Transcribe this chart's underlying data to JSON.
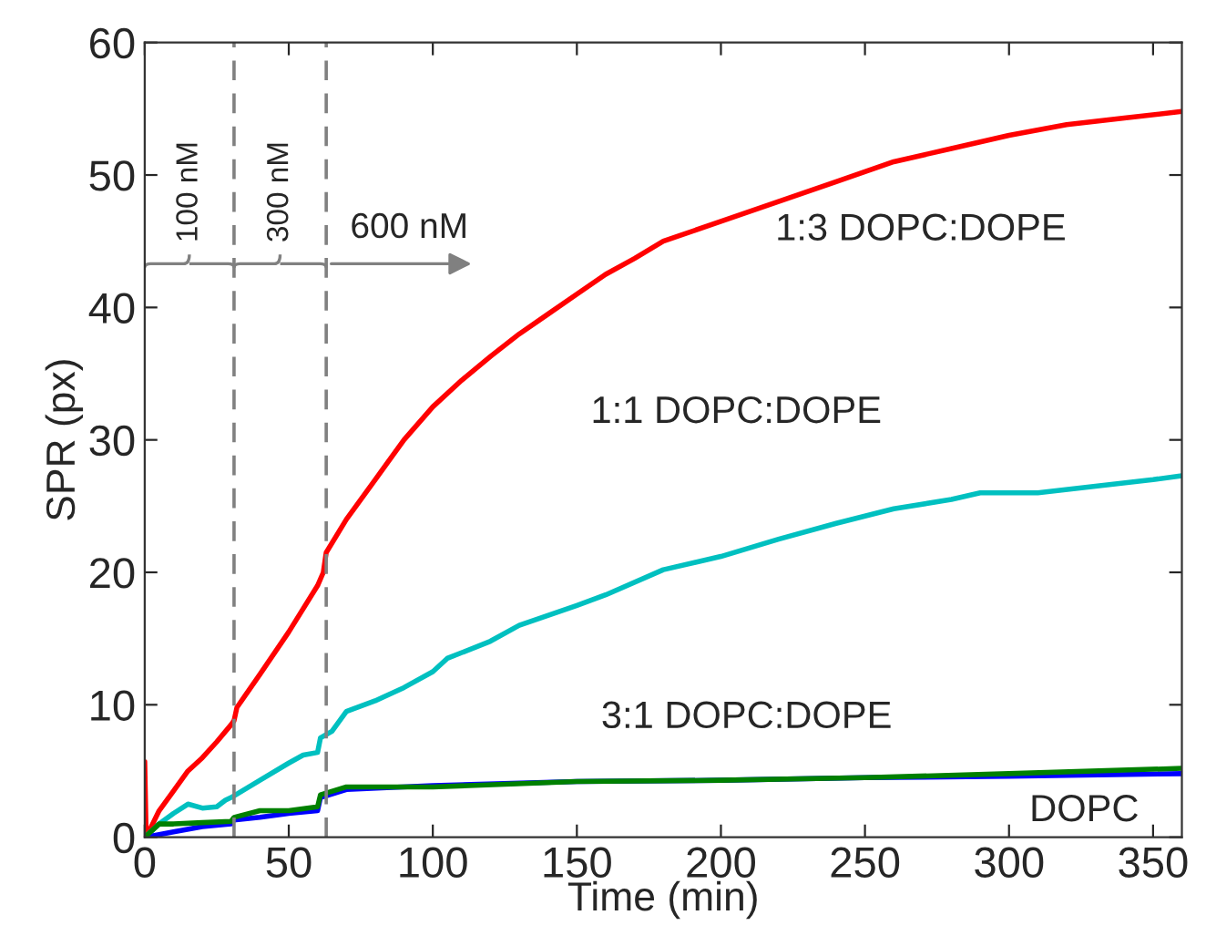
{
  "chart_data": {
    "type": "line",
    "xlabel": "Time (min)",
    "ylabel": "SPR (px)",
    "xlim": [
      0,
      360
    ],
    "xticks": [
      0,
      50,
      100,
      150,
      200,
      250,
      300,
      350
    ],
    "ylim": [
      0,
      60
    ],
    "yticks": [
      0,
      10,
      20,
      30,
      40,
      50,
      60
    ],
    "grid": false,
    "legend": false,
    "line_style": "solid",
    "marker": "none",
    "series": [
      {
        "name": "1:3 DOPC:DOPE",
        "color": "#ff0000",
        "x": [
          0,
          0.5,
          5,
          10,
          15,
          20,
          25,
          30,
          31,
          32,
          40,
          50,
          60,
          62,
          63,
          70,
          80,
          90,
          100,
          110,
          120,
          130,
          140,
          150,
          160,
          170,
          180,
          200,
          220,
          240,
          260,
          280,
          300,
          320,
          340,
          360
        ],
        "values": [
          5.7,
          0,
          2,
          3.5,
          5,
          6,
          7.2,
          8.5,
          8.8,
          9.8,
          12.3,
          15.5,
          19,
          20,
          21.5,
          24,
          27,
          30,
          32.5,
          34.5,
          36.3,
          38,
          39.5,
          41,
          42.5,
          43.7,
          45,
          46.5,
          48,
          49.5,
          51,
          52,
          53,
          53.8,
          54.3,
          54.8
        ]
      },
      {
        "name": "1:1 DOPC:DOPE",
        "color": "#00c0c0",
        "x": [
          0,
          5,
          10,
          15,
          20,
          25,
          28,
          30,
          40,
          50,
          55,
          60,
          61,
          65,
          70,
          80,
          90,
          100,
          105,
          120,
          130,
          150,
          160,
          180,
          200,
          220,
          240,
          260,
          280,
          290,
          310,
          330,
          350,
          360
        ],
        "values": [
          0,
          1,
          1.8,
          2.5,
          2.2,
          2.3,
          2.8,
          3,
          4.3,
          5.6,
          6.2,
          6.4,
          7.5,
          8,
          9.5,
          10.3,
          11.3,
          12.5,
          13.5,
          14.8,
          16,
          17.5,
          18.3,
          20.2,
          21.2,
          22.5,
          23.7,
          24.8,
          25.5,
          26,
          26,
          26.5,
          27,
          27.3
        ]
      },
      {
        "name": "DOPC",
        "color": "#0000ff",
        "x": [
          0,
          10,
          20,
          30,
          31,
          40,
          50,
          60,
          61,
          70,
          100,
          150,
          200,
          250,
          300,
          360
        ],
        "values": [
          0,
          0.4,
          0.8,
          1,
          1.3,
          1.5,
          1.8,
          2,
          3,
          3.6,
          3.9,
          4.2,
          4.3,
          4.5,
          4.6,
          4.8
        ]
      },
      {
        "name": "3:1 DOPC:DOPE",
        "color": "#008000",
        "x": [
          0,
          5,
          10,
          20,
          30,
          31,
          40,
          50,
          60,
          61,
          70,
          80,
          100,
          150,
          200,
          250,
          300,
          360
        ],
        "values": [
          0,
          1,
          1,
          1.1,
          1.2,
          1.5,
          2,
          2,
          2.3,
          3.2,
          3.8,
          3.8,
          3.8,
          4.2,
          4.3,
          4.5,
          4.8,
          5.2
        ]
      }
    ],
    "ref_lines": [
      {
        "axis": "x",
        "value": 31,
        "color": "#808080",
        "line_style": "dashed"
      },
      {
        "axis": "x",
        "value": 63,
        "color": "#808080",
        "line_style": "dashed"
      }
    ],
    "annotations": [
      {
        "text": "100 nM",
        "x": 31,
        "y": 43.3
      },
      {
        "text": "300 nM",
        "x": 63,
        "y": 43.3
      },
      "600 nM"
    ]
  }
}
